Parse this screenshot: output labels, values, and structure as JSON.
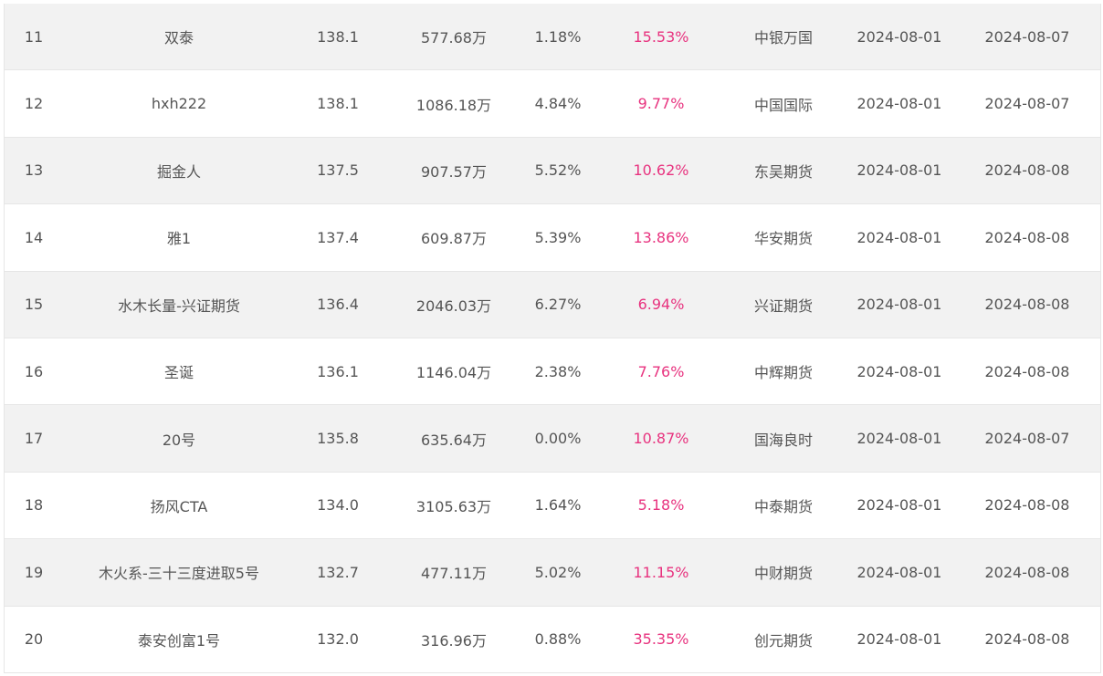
{
  "table": {
    "rows": [
      {
        "rank": "11",
        "name": "双泰",
        "nav": "138.1",
        "size": "577.68万",
        "drawdown": "1.18%",
        "return": "15.53%",
        "broker": "中银万国",
        "start": "2024-08-01",
        "end": "2024-08-07"
      },
      {
        "rank": "12",
        "name": "hxh222",
        "nav": "138.1",
        "size": "1086.18万",
        "drawdown": "4.84%",
        "return": "9.77%",
        "broker": "中国国际",
        "start": "2024-08-01",
        "end": "2024-08-07"
      },
      {
        "rank": "13",
        "name": "掘金人",
        "nav": "137.5",
        "size": "907.57万",
        "drawdown": "5.52%",
        "return": "10.62%",
        "broker": "东吴期货",
        "start": "2024-08-01",
        "end": "2024-08-08"
      },
      {
        "rank": "14",
        "name": "雅1",
        "nav": "137.4",
        "size": "609.87万",
        "drawdown": "5.39%",
        "return": "13.86%",
        "broker": "华安期货",
        "start": "2024-08-01",
        "end": "2024-08-08"
      },
      {
        "rank": "15",
        "name": "水木长量-兴证期货",
        "nav": "136.4",
        "size": "2046.03万",
        "drawdown": "6.27%",
        "return": "6.94%",
        "broker": "兴证期货",
        "start": "2024-08-01",
        "end": "2024-08-08"
      },
      {
        "rank": "16",
        "name": "圣诞",
        "nav": "136.1",
        "size": "1146.04万",
        "drawdown": "2.38%",
        "return": "7.76%",
        "broker": "中辉期货",
        "start": "2024-08-01",
        "end": "2024-08-08"
      },
      {
        "rank": "17",
        "name": "20号",
        "nav": "135.8",
        "size": "635.64万",
        "drawdown": "0.00%",
        "return": "10.87%",
        "broker": "国海良时",
        "start": "2024-08-01",
        "end": "2024-08-07"
      },
      {
        "rank": "18",
        "name": "扬风CTA",
        "nav": "134.0",
        "size": "3105.63万",
        "drawdown": "1.64%",
        "return": "5.18%",
        "broker": "中泰期货",
        "start": "2024-08-01",
        "end": "2024-08-08"
      },
      {
        "rank": "19",
        "name": "木火系-三十三度进取5号",
        "nav": "132.7",
        "size": "477.11万",
        "drawdown": "5.02%",
        "return": "11.15%",
        "broker": "中财期货",
        "start": "2024-08-01",
        "end": "2024-08-08"
      },
      {
        "rank": "20",
        "name": "泰安创富1号",
        "nav": "132.0",
        "size": "316.96万",
        "drawdown": "0.88%",
        "return": "35.35%",
        "broker": "创元期货",
        "start": "2024-08-01",
        "end": "2024-08-08"
      }
    ]
  },
  "colors": {
    "return_text": "#e8337f",
    "body_text": "#555555",
    "odd_row_bg": "#f2f2f2",
    "even_row_bg": "#ffffff",
    "border": "#e6e6e6"
  }
}
